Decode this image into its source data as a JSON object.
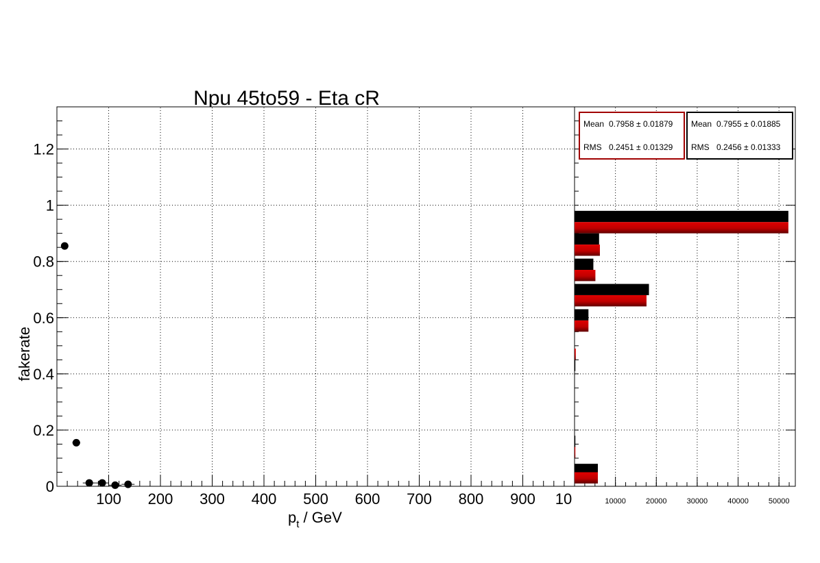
{
  "chart_data": [
    {
      "type": "scatter",
      "title": "Npu 45to59 - Eta cR",
      "xlabel_main": "p",
      "xlabel_sub": "t",
      "xlabel_rest": " / GeV",
      "ylabel": "fakerate",
      "xlim": [
        0,
        1000
      ],
      "ylim": [
        0,
        1.35
      ],
      "x_ticks": [
        "100",
        "200",
        "300",
        "400",
        "500",
        "600",
        "700",
        "800",
        "900",
        "10"
      ],
      "y_ticks": [
        "0",
        "0.2",
        "0.4",
        "0.6",
        "0.8",
        "1",
        "1.2"
      ],
      "grid": true,
      "points": [
        {
          "x": 15,
          "y": 0.855,
          "xerr": 5
        },
        {
          "x": 37.5,
          "y": 0.155,
          "xerr": 7.5
        },
        {
          "x": 62.5,
          "y": 0.012,
          "xerr": 12.5
        },
        {
          "x": 87.5,
          "y": 0.012,
          "xerr": 12.5
        },
        {
          "x": 112.5,
          "y": 0.004,
          "xerr": 12.5
        },
        {
          "x": 137.5,
          "y": 0.007,
          "xerr": 12.5
        }
      ]
    },
    {
      "type": "bar",
      "orientation": "horizontal",
      "xlim": [
        0,
        54000
      ],
      "ylim": [
        0,
        1.35
      ],
      "x_ticks": [
        "10000",
        "20000",
        "30000",
        "40000",
        "50000"
      ],
      "series": [
        {
          "color": "#000000",
          "bins": [
            {
              "y_low": 0.94,
              "y_high": 0.98,
              "value": 52300
            },
            {
              "y_low": 0.86,
              "y_high": 0.9,
              "value": 6000
            },
            {
              "y_low": 0.77,
              "y_high": 0.81,
              "value": 4600
            },
            {
              "y_low": 0.68,
              "y_high": 0.72,
              "value": 18200
            },
            {
              "y_low": 0.59,
              "y_high": 0.63,
              "value": 3400
            },
            {
              "y_low": 0.41,
              "y_high": 0.45,
              "value": 200
            },
            {
              "y_low": 0.14,
              "y_high": 0.18,
              "value": 200
            },
            {
              "y_low": 0.04,
              "y_high": 0.08,
              "value": 5700
            }
          ]
        },
        {
          "color": "#c00000",
          "bins": [
            {
              "y_low": 0.9,
              "y_high": 0.94,
              "value": 52300
            },
            {
              "y_low": 0.82,
              "y_high": 0.86,
              "value": 6200
            },
            {
              "y_low": 0.73,
              "y_high": 0.77,
              "value": 5100
            },
            {
              "y_low": 0.64,
              "y_high": 0.68,
              "value": 17600
            },
            {
              "y_low": 0.55,
              "y_high": 0.59,
              "value": 3400
            },
            {
              "y_low": 0.45,
              "y_high": 0.49,
              "value": 300
            },
            {
              "y_low": 0.1,
              "y_high": 0.14,
              "value": 200
            },
            {
              "y_low": 0.01,
              "y_high": 0.05,
              "value": 5700
            }
          ]
        }
      ]
    }
  ],
  "stats": [
    {
      "color": "#a00000",
      "mean_label": "Mean",
      "mean_value": "0.7958 ± 0.01879",
      "rms_label": "RMS",
      "rms_value": "0.2451 ± 0.01329"
    },
    {
      "color": "#000000",
      "mean_label": "Mean",
      "mean_value": "0.7955 ± 0.01885",
      "rms_label": "RMS",
      "rms_value": "0.2456 ± 0.01333"
    }
  ]
}
